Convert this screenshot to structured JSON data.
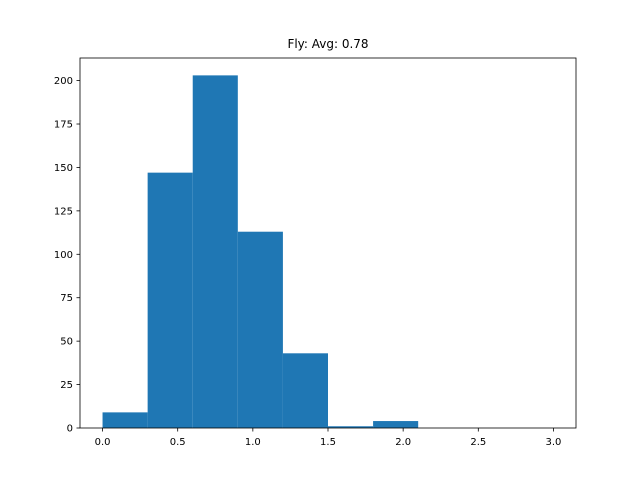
{
  "chart_data": {
    "type": "bar",
    "title": "Fly: Avg: 0.78",
    "xlabel": "",
    "ylabel": "",
    "bin_edges": [
      0.0,
      0.3,
      0.6,
      0.9,
      1.2,
      1.5,
      1.8,
      2.1,
      2.4,
      2.7,
      3.0
    ],
    "counts": [
      9,
      147,
      203,
      113,
      43,
      1,
      4,
      0,
      0,
      0
    ],
    "xlim": [
      -0.15,
      3.15
    ],
    "ylim": [
      0,
      213
    ],
    "x_ticks": [
      0.0,
      0.5,
      1.0,
      1.5,
      2.0,
      2.5,
      3.0
    ],
    "x_tick_labels": [
      "0.0",
      "0.5",
      "1.0",
      "1.5",
      "2.0",
      "2.5",
      "3.0"
    ],
    "y_ticks": [
      0,
      25,
      50,
      75,
      100,
      125,
      150,
      175,
      200
    ],
    "y_tick_labels": [
      "0",
      "25",
      "50",
      "75",
      "100",
      "125",
      "150",
      "175",
      "200"
    ],
    "bar_color": "#1f77b4",
    "grid": false,
    "legend": "none"
  }
}
